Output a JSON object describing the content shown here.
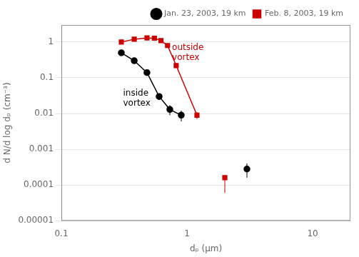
{
  "chart_data": {
    "type": "line",
    "xlabel": "dₚ (μm)",
    "ylabel": "d N/d log dₚ (cm⁻³)",
    "log": true,
    "xlim": [
      0.1,
      20
    ],
    "ylim": [
      1e-05,
      3
    ],
    "xticks": [
      0.1,
      1,
      10
    ],
    "yticks": [
      1e-05,
      0.0001,
      0.001,
      0.01,
      0.1,
      1
    ],
    "grid": "y",
    "legend": "upper right",
    "series": [
      {
        "name": "Jan. 23, 2003, 19 km",
        "color": "#000000",
        "marker": "circle",
        "line_style": "solid",
        "x": [
          0.3,
          0.38,
          0.48,
          0.6,
          0.73,
          0.9
        ],
        "values": [
          0.5,
          0.3,
          0.14,
          0.03,
          0.013,
          0.009
        ],
        "yerr_lo": [
          0.07,
          0.05,
          0.02,
          0.006,
          0.004,
          0.003
        ],
        "yerr_hi": [
          0.07,
          0.05,
          0.02,
          0.006,
          0.004,
          0.003
        ]
      },
      {
        "color": "#000000",
        "marker": "circle",
        "line_style": "none",
        "x": [
          3.0
        ],
        "values": [
          0.00028
        ],
        "yerr_lo": [
          0.00012
        ],
        "yerr_hi": [
          0.00012
        ]
      },
      {
        "name": "Feb. 8, 2003, 19 km",
        "color": "#cc0000",
        "marker": "square",
        "line_style": "solid",
        "x": [
          0.3,
          0.38,
          0.48,
          0.55,
          0.62,
          0.7,
          0.82,
          1.2
        ],
        "values": [
          1.0,
          1.2,
          1.3,
          1.28,
          1.1,
          0.8,
          0.22,
          0.009
        ],
        "yerr_lo": [
          0.1,
          0.12,
          0.12,
          0.12,
          0.1,
          0.08,
          0.03,
          0.002
        ],
        "yerr_hi": [
          0.1,
          0.12,
          0.12,
          0.12,
          0.1,
          0.08,
          0.03,
          0.002
        ]
      },
      {
        "color": "#cc0000",
        "marker": "square",
        "line_style": "none",
        "x": [
          2.0
        ],
        "values": [
          0.00016
        ],
        "yerr_lo": [
          0.0001
        ],
        "yerr_hi": [
          3e-05
        ]
      }
    ],
    "annotations": [
      {
        "text": "inside\nvortex",
        "x": 0.31,
        "y": 0.026,
        "color": "#000000"
      },
      {
        "text": "outside\nvortex",
        "x": 0.76,
        "y": 0.5,
        "color": "#cc0000"
      }
    ]
  }
}
